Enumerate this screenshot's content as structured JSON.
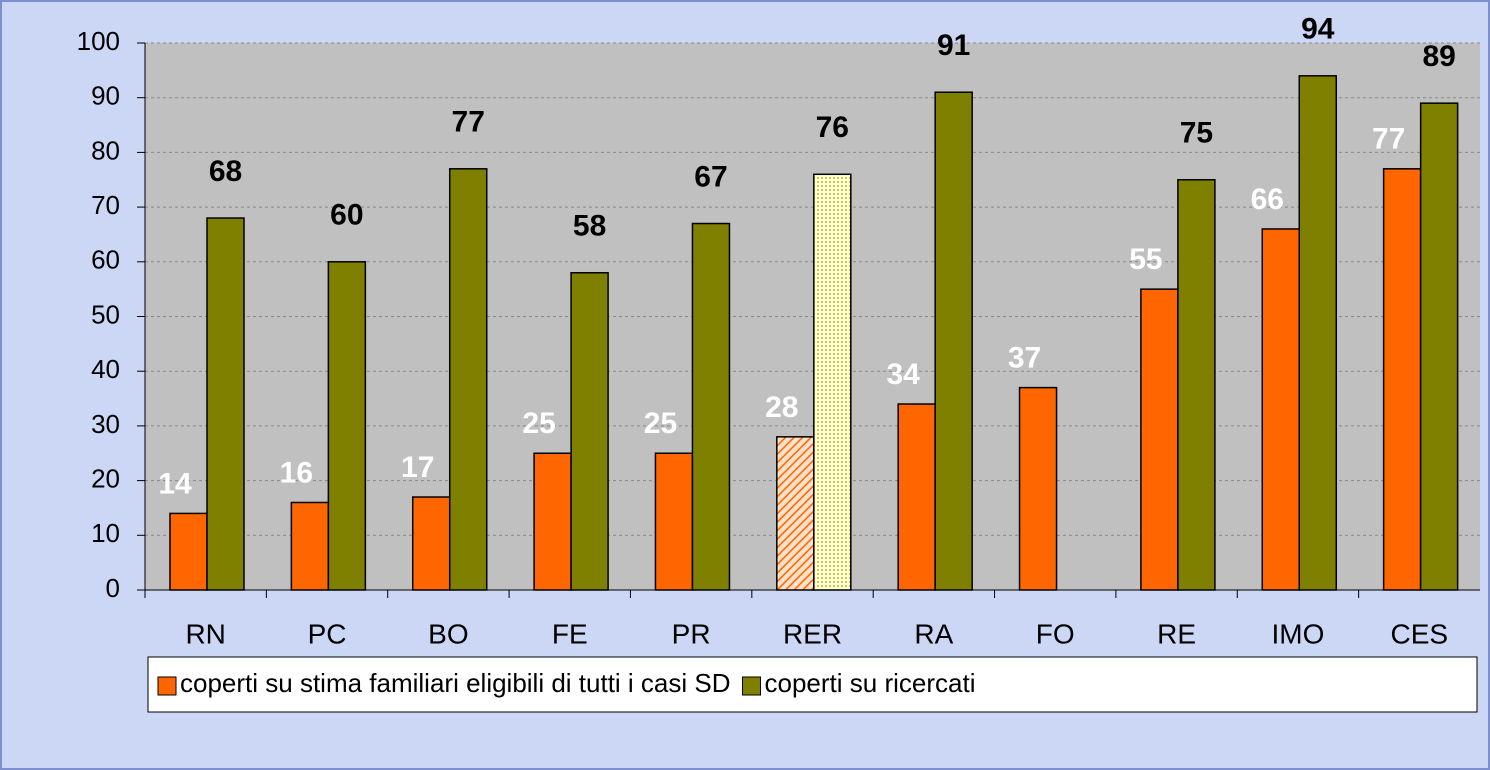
{
  "chart_data": {
    "type": "bar",
    "categories": [
      "RN",
      "PC",
      "BO",
      "FE",
      "PR",
      "RER",
      "RA",
      "FO",
      "RE",
      "IMO",
      "CES"
    ],
    "series": [
      {
        "name": "coperti su stima familiari eligibili di tutti i casi SD",
        "color": "#ff6600",
        "label_color": "#ffffff",
        "values": [
          14,
          16,
          17,
          25,
          25,
          28,
          34,
          37,
          55,
          66,
          77
        ]
      },
      {
        "name": "coperti su ricercati",
        "color": "#808000",
        "label_color": "#000000",
        "values": [
          68,
          60,
          77,
          58,
          67,
          76,
          91,
          null,
          75,
          94,
          89
        ]
      }
    ],
    "highlight": "RER",
    "ylim": [
      0,
      100
    ],
    "yticks": [
      0,
      10,
      20,
      30,
      40,
      50,
      60,
      70,
      80,
      90,
      100
    ],
    "grid": true,
    "legend": "bottom"
  }
}
